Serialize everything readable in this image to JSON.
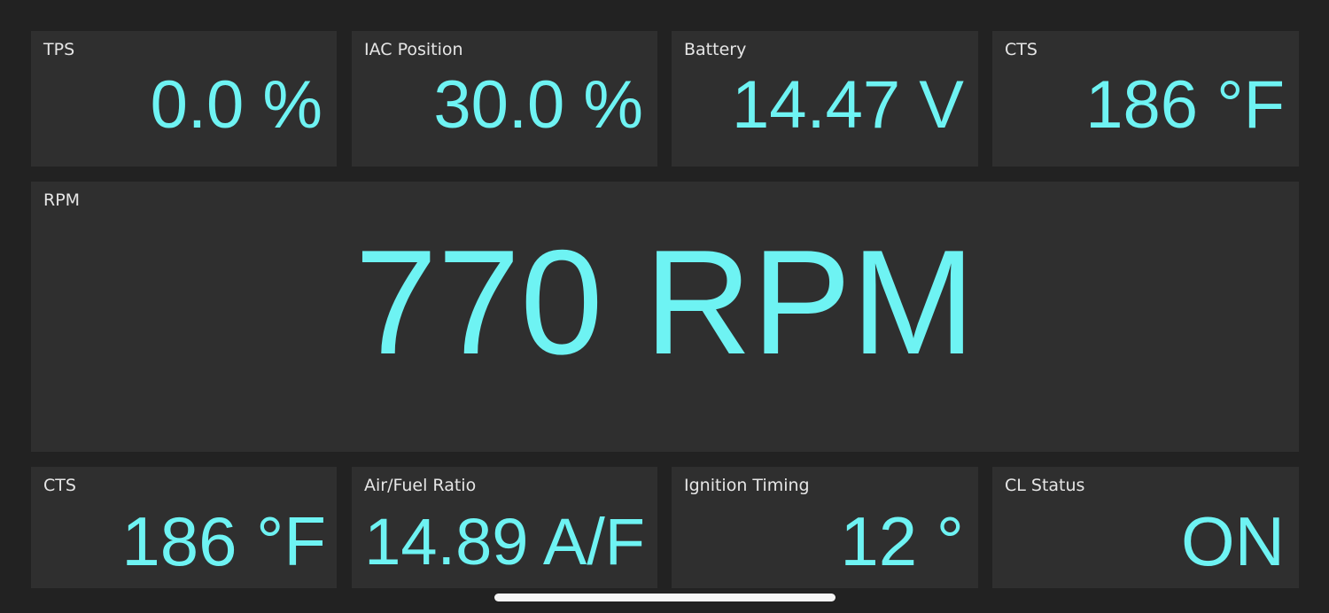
{
  "accent_color": "#6ef3f3",
  "row1": [
    {
      "label": "TPS",
      "value": "0.0 %"
    },
    {
      "label": "IAC Position",
      "value": "30.0 %"
    },
    {
      "label": "Battery",
      "value": "14.47 V"
    },
    {
      "label": "CTS",
      "value": "186 °F"
    }
  ],
  "rpm": {
    "label": "RPM",
    "value": "770 RPM"
  },
  "row3": [
    {
      "label": "CTS",
      "value": "186 °F"
    },
    {
      "label": "Air/Fuel Ratio",
      "value": "14.89 A/F"
    },
    {
      "label": "Ignition Timing",
      "value": "12 °"
    },
    {
      "label": "CL Status",
      "value": "ON"
    }
  ]
}
